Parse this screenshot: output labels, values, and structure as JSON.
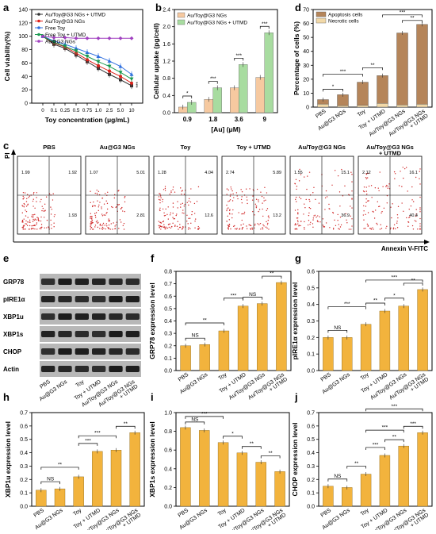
{
  "panels": {
    "a": {
      "label": "a",
      "type": "line",
      "ylabel": "Cell viability(%)",
      "xlabel": "Toy concentration (μg/mL)",
      "x": [
        "0",
        "0.1",
        "0.25",
        "0.5",
        "0.75",
        "1.0",
        "2.5",
        "5.0",
        "10"
      ],
      "ylim": [
        0,
        140
      ],
      "yticks": [
        "0",
        "20",
        "40",
        "60",
        "80",
        "100",
        "120",
        "140"
      ],
      "legend_position": "top-left",
      "annotation": "***",
      "series": [
        {
          "name": "Au/Toy@G3 NGs + UTMD",
          "color": "#333333",
          "marker": "square",
          "values": [
            100,
            88,
            82,
            72,
            62,
            52,
            43,
            35,
            26
          ]
        },
        {
          "name": "Au/Toy@G3 NGs",
          "color": "#e0201b",
          "marker": "circle",
          "values": [
            100,
            90,
            84,
            75,
            65,
            56,
            48,
            40,
            30
          ]
        },
        {
          "name": "Free Toy",
          "color": "#2f6fdf",
          "marker": "triangle",
          "values": [
            100,
            93,
            88,
            82,
            76,
            70,
            63,
            55,
            43
          ]
        },
        {
          "name": "Free Toy + UTMD",
          "color": "#1a9a50",
          "marker": "invtriangle",
          "values": [
            100,
            91,
            85,
            78,
            70,
            62,
            55,
            46,
            36
          ]
        },
        {
          "name": "Au@G3 NGs",
          "color": "#a040c0",
          "marker": "diamond",
          "values": [
            100,
            98,
            98,
            97,
            97,
            97,
            97,
            97,
            97
          ]
        }
      ]
    },
    "b": {
      "label": "b",
      "type": "bar",
      "ylabel": "Cellular uptake (pg/cell)",
      "xlabel": "[Au] (μM)",
      "categories": [
        "0.9",
        "1.8",
        "3.6",
        "9"
      ],
      "ylim": [
        0,
        2.4
      ],
      "yticks": [
        "0.0",
        "0.4",
        "0.8",
        "1.2",
        "1.6",
        "2.0",
        "2.4"
      ],
      "series": [
        {
          "name": "Au/Toy@G3 NGs",
          "color": "#f6c9a0",
          "values": [
            0.13,
            0.31,
            0.58,
            0.82
          ]
        },
        {
          "name": "Au/Toy@G3 NGs + UTMD",
          "color": "#a8dca0",
          "values": [
            0.24,
            0.58,
            1.12,
            1.86
          ]
        }
      ],
      "significance": [
        "*",
        "***",
        "***",
        "***"
      ]
    },
    "d": {
      "label": "d",
      "type": "bar",
      "ylabel": "Percentage of cells (%)",
      "categories": [
        "PBS",
        "Au@G3 NGs",
        "Toy",
        "Toy + UTMD",
        "Au/Toy@G3 NGs",
        "Au/Toy@G3 NGs\n+ UTMD"
      ],
      "ylim": [
        0,
        70
      ],
      "yticks": [
        "0",
        "10",
        "20",
        "30",
        "40",
        "50",
        "60",
        "70"
      ],
      "series": [
        {
          "name": "Apoptosis cells",
          "color": "#b5855a",
          "values": [
            3.2,
            7.8,
            16.6,
            19.9,
            51.6,
            57.2
          ]
        },
        {
          "name": "Necrotic cells",
          "color": "#f2d9a8",
          "values": [
            2.2,
            1.1,
            1.3,
            2.7,
            1.6,
            2.1
          ]
        }
      ],
      "brackets": [
        "*",
        "***",
        "**",
        "***",
        "**"
      ]
    },
    "c": {
      "label": "c",
      "ylabel": "PI",
      "xlabel": "Annexin V-FITC",
      "plots": [
        {
          "title": "PBS",
          "ul": "1.99",
          "ur": "1.92",
          "lr": "1.93"
        },
        {
          "title": "Au@G3 NGs",
          "ul": "1.07",
          "ur": "5.01",
          "lr": "2.81"
        },
        {
          "title": "Toy",
          "ul": "1.28",
          "ur": "4.04",
          "lr": "12.6"
        },
        {
          "title": "Toy + UTMD",
          "ul": "2.74",
          "ur": "5.89",
          "lr": "13.2"
        },
        {
          "title": "Au/Toy@G3 NGs",
          "ul": "1.55",
          "ur": "15.1",
          "lr": "36.9"
        },
        {
          "title": "Au/Toy@G3 NGs\n+ UTMD",
          "ul": "2.12",
          "ur": "16.1",
          "lr": "40.4"
        }
      ]
    },
    "e": {
      "label": "e",
      "rows": [
        "GRP78",
        "pIRE1α",
        "XBP1u",
        "XBP1s",
        "CHOP",
        "Actin"
      ],
      "lanes": [
        "PBS",
        "Au@G3 NGs",
        "Toy",
        "Toy + UTMD",
        "Au/Toy@G3 NGs",
        "Au/Toy@G3 NGs\n+ UTMD"
      ]
    },
    "f": {
      "label": "f",
      "ylabel": "GRP78 expression level",
      "ylim": [
        0,
        0.8
      ],
      "yticks": [
        "0.0",
        "0.1",
        "0.2",
        "0.3",
        "0.4",
        "0.5",
        "0.6",
        "0.7",
        "0.8"
      ],
      "values": [
        0.2,
        0.21,
        0.32,
        0.52,
        0.54,
        0.71
      ],
      "brackets": [
        "NS",
        "**",
        "***",
        "NS",
        "**"
      ]
    },
    "g": {
      "label": "g",
      "ylabel": "pIRE1α expression level",
      "ylim": [
        0,
        0.6
      ],
      "yticks": [
        "0.0",
        "0.1",
        "0.2",
        "0.3",
        "0.4",
        "0.5",
        "0.6"
      ],
      "values": [
        0.2,
        0.2,
        0.28,
        0.36,
        0.39,
        0.49
      ],
      "brackets": [
        "NS",
        "***",
        "**",
        "***",
        "*",
        "**"
      ]
    },
    "h": {
      "label": "h",
      "ylabel": "XBP1u expression level",
      "ylim": [
        0,
        0.7
      ],
      "yticks": [
        "0.0",
        "0.1",
        "0.2",
        "0.3",
        "0.4",
        "0.5",
        "0.6",
        "0.7"
      ],
      "values": [
        0.12,
        0.13,
        0.22,
        0.41,
        0.42,
        0.55
      ],
      "brackets": [
        "NS",
        "**",
        "***",
        "***",
        "**"
      ]
    },
    "i": {
      "label": "i",
      "ylabel": "XBP1s expression level",
      "ylim": [
        0,
        1.0
      ],
      "yticks": [
        "0.0",
        "0.2",
        "0.4",
        "0.6",
        "0.8",
        "1.0"
      ],
      "values": [
        0.84,
        0.81,
        0.68,
        0.57,
        0.47,
        0.37
      ],
      "brackets": [
        "NS",
        "***",
        "*",
        "**",
        "**"
      ]
    },
    "j": {
      "label": "j",
      "ylabel": "CHOP expression level",
      "ylim": [
        0,
        0.7
      ],
      "yticks": [
        "0.0",
        "0.1",
        "0.2",
        "0.3",
        "0.4",
        "0.5",
        "0.6",
        "0.7"
      ],
      "values": [
        0.15,
        0.14,
        0.24,
        0.38,
        0.45,
        0.55
      ],
      "brackets": [
        "NS",
        "**",
        "***",
        "***",
        "**",
        "***",
        "***"
      ]
    },
    "bar_categories": [
      "PBS",
      "Au@G3 NGs",
      "Toy",
      "Toy + UTMD",
      "Au/Toy@G3 NGs",
      "Au/Toy@G3 NGs\n+ UTMD"
    ],
    "bar_color": "#f2b33d"
  }
}
